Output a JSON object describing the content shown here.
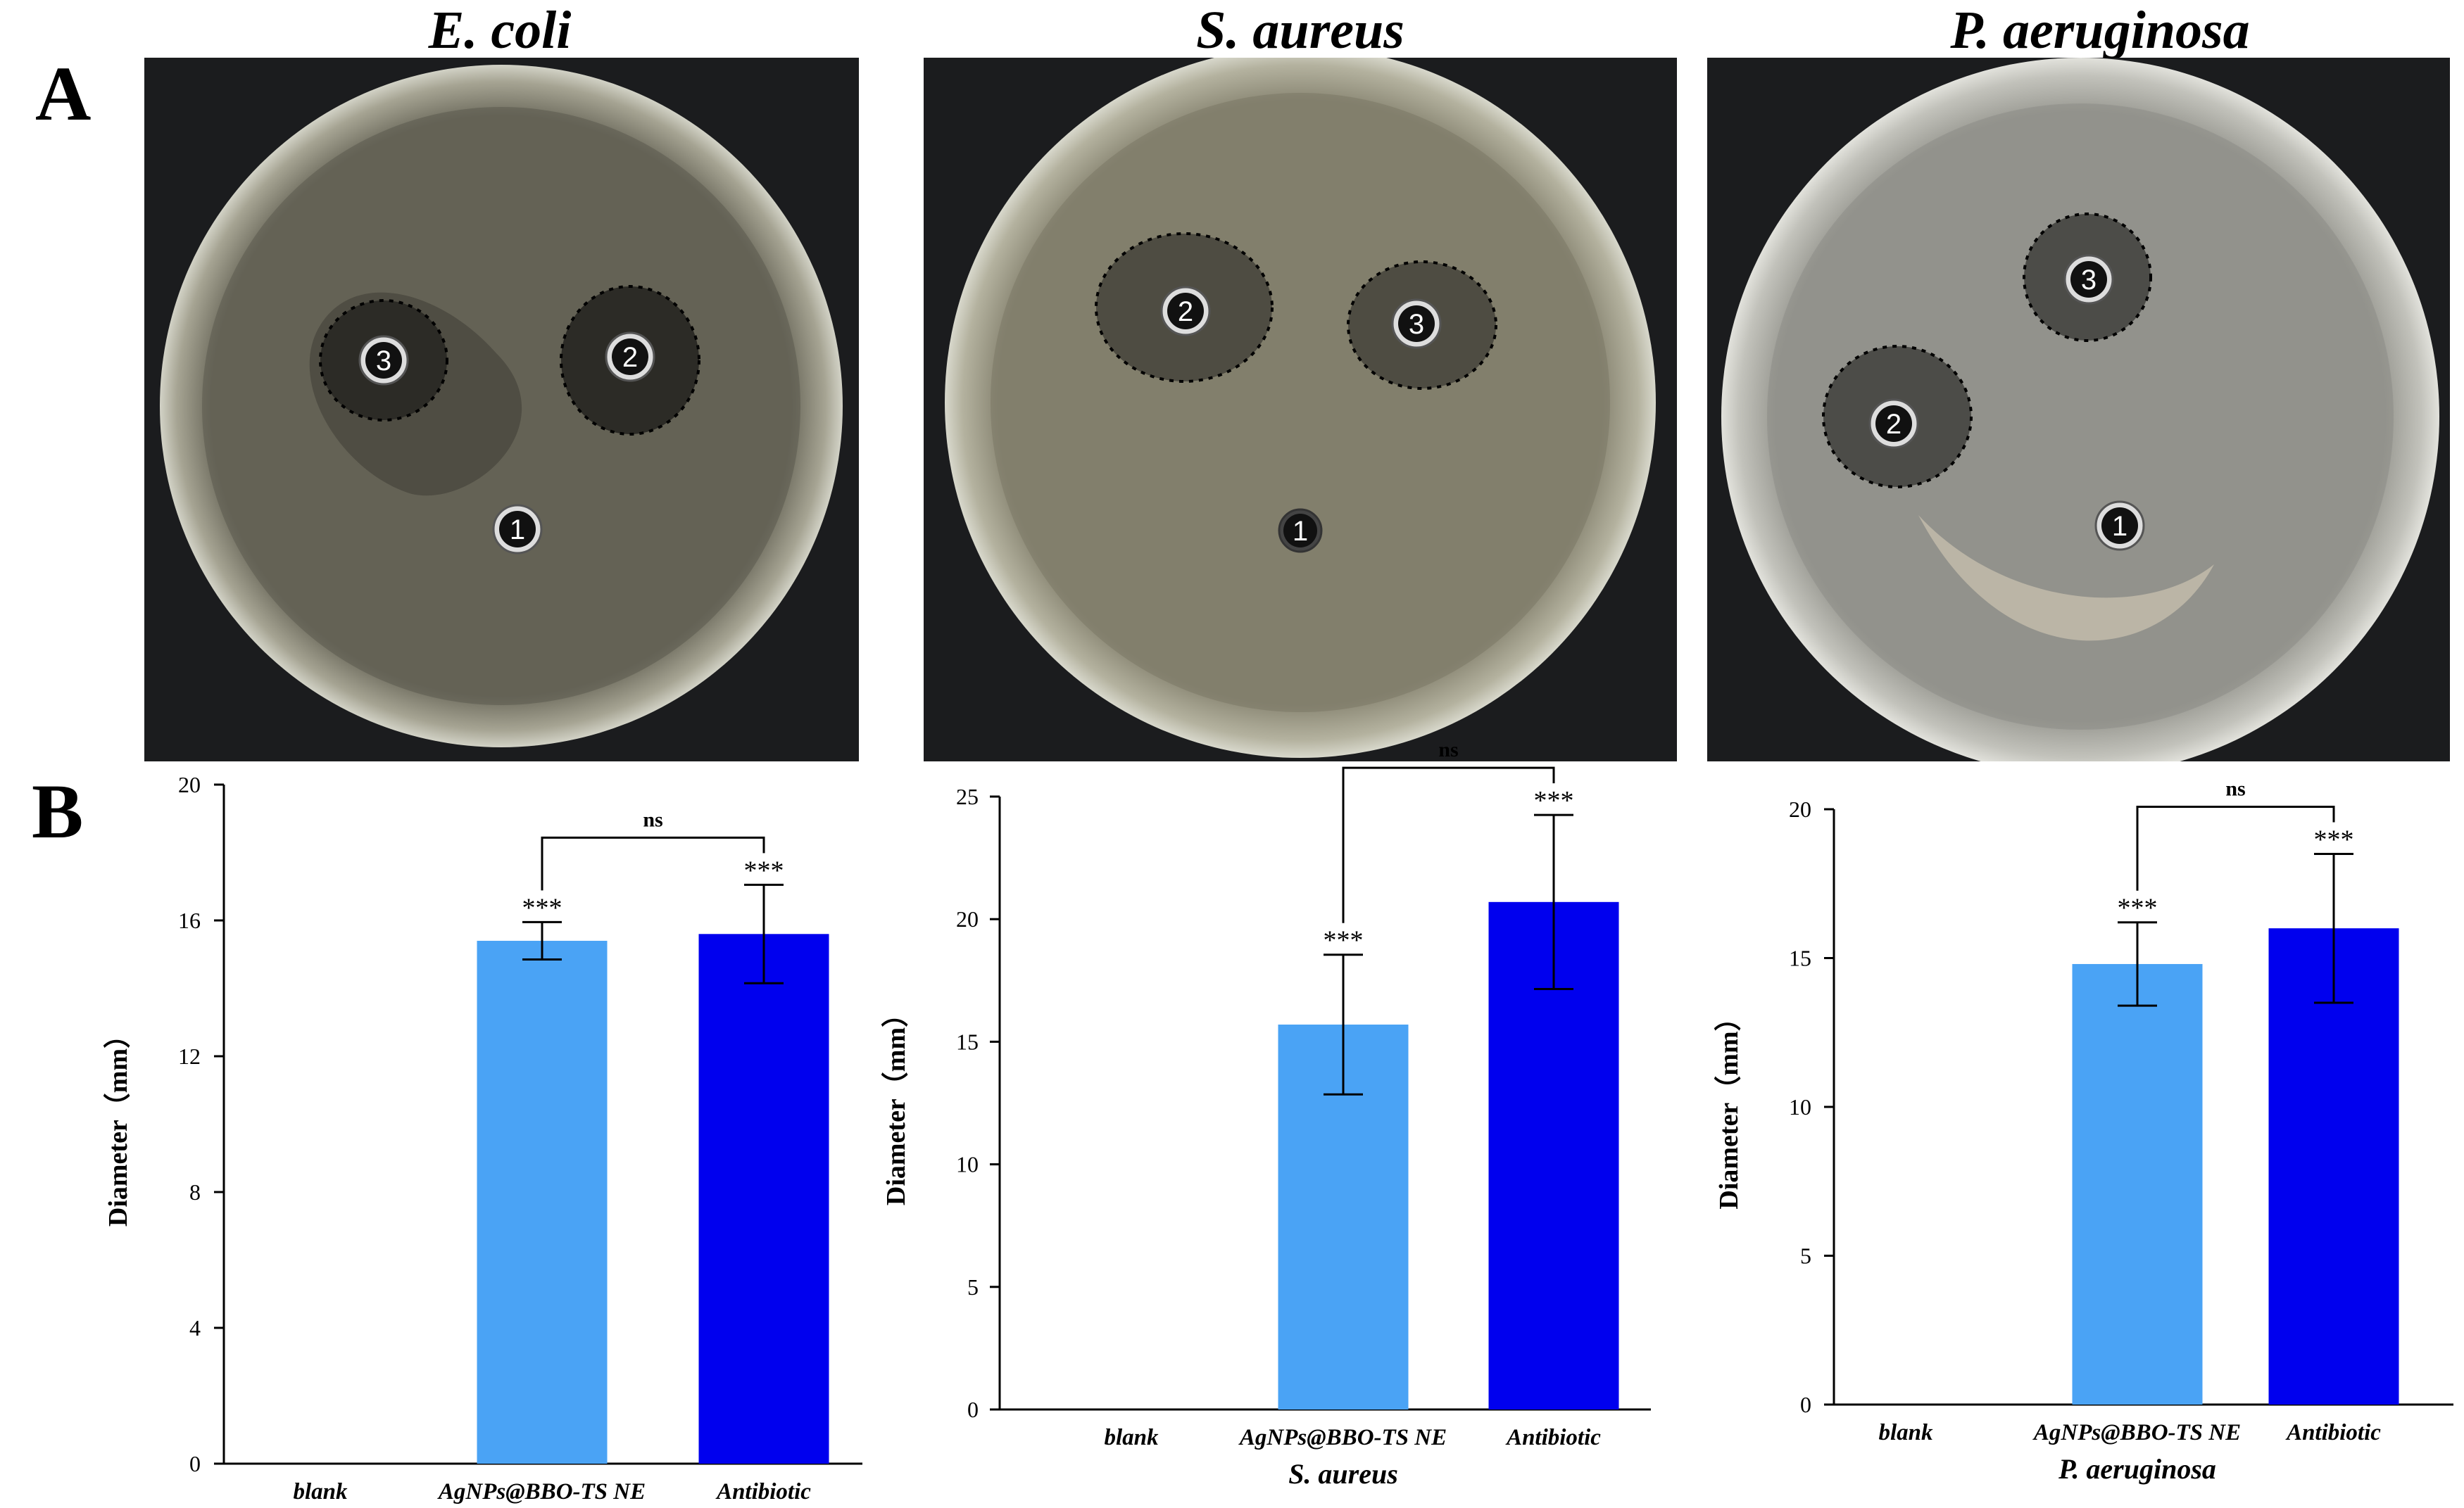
{
  "panels": {
    "a": "A",
    "b": "B"
  },
  "plates": [
    {
      "title": "E. coli",
      "wells": [
        "1",
        "2",
        "3"
      ],
      "agar": "#6e6c5e"
    },
    {
      "title": "S. aureus",
      "wells": [
        "1",
        "2",
        "3"
      ],
      "agar": "#8a8774"
    },
    {
      "title": "P. aeruginosa",
      "wells": [
        "1",
        "2",
        "3"
      ],
      "agar": "#9a9a93"
    }
  ],
  "colors": {
    "nanoemulsion": "#4aa3f5",
    "antibiotic": "#0000ee"
  },
  "chart_data": [
    {
      "type": "bar",
      "categories": [
        "blank",
        "AgNPs@BBO-TS NE",
        "Antibiotic"
      ],
      "values": [
        0,
        15.4,
        15.6
      ],
      "errors": [
        0,
        0.55,
        1.45
      ],
      "significance": [
        "",
        "***",
        "***"
      ],
      "comparison": {
        "between": [
          1,
          2
        ],
        "label": "ns"
      },
      "xlabel": "E. coli",
      "ylabel": "Diameter（mm）",
      "ylim": [
        0,
        20
      ],
      "yticks": [
        0,
        4,
        8,
        12,
        16,
        20
      ]
    },
    {
      "type": "bar",
      "categories": [
        "blank",
        "AgNPs@BBO-TS NE",
        "Antibiotic"
      ],
      "values": [
        0,
        15.7,
        20.7
      ],
      "errors": [
        0,
        2.85,
        3.55
      ],
      "significance": [
        "",
        "***",
        "***"
      ],
      "comparison": {
        "between": [
          1,
          2
        ],
        "label": "ns"
      },
      "xlabel": "S. aureus",
      "ylabel": "Diameter（mm）",
      "ylim": [
        0,
        25
      ],
      "yticks": [
        0,
        5,
        10,
        15,
        20,
        25
      ]
    },
    {
      "type": "bar",
      "categories": [
        "blank",
        "AgNPs@BBO-TS NE",
        "Antibiotic"
      ],
      "values": [
        0,
        14.8,
        16.0
      ],
      "errors": [
        0,
        1.4,
        2.5
      ],
      "significance": [
        "",
        "***",
        "***"
      ],
      "comparison": {
        "between": [
          1,
          2
        ],
        "label": "ns"
      },
      "xlabel": "P. aeruginosa",
      "ylabel": "Diameter（mm）",
      "ylim": [
        0,
        20
      ],
      "yticks": [
        0,
        5,
        10,
        15,
        20
      ]
    }
  ]
}
